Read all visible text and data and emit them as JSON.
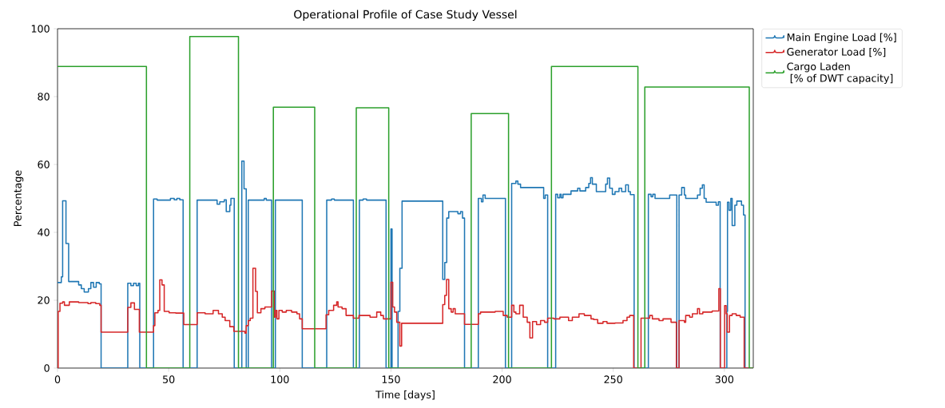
{
  "chart_data": {
    "type": "step",
    "title": "Operational Profile of Case Study Vessel",
    "xlabel": "Time [days]",
    "ylabel": "Percentage",
    "xlim": [
      0,
      313
    ],
    "ylim": [
      0,
      100
    ],
    "xticks": [
      0,
      50,
      100,
      150,
      200,
      250,
      300
    ],
    "yticks": [
      0,
      20,
      40,
      60,
      80,
      100
    ],
    "legend": "top right",
    "series": [
      {
        "name": "Main Engine Load [%]",
        "color": "#1f77b4",
        "x": [
          0,
          1.7,
          2.3,
          3.8,
          5.0,
          9.5,
          10.7,
          12.0,
          13.9,
          15.0,
          16.2,
          17.4,
          18.8,
          19.6,
          31.6,
          33.0,
          34.2,
          35.4,
          36.4,
          37.0,
          43.2,
          44.8,
          50.8,
          52.5,
          53.7,
          55.0,
          56.5,
          62.8,
          71.8,
          73.0,
          75.0,
          75.9,
          77.5,
          78.0,
          79.5,
          82.9,
          83.9,
          84.9,
          85.8,
          93.0,
          93.9,
          96.3,
          98.0,
          110.1,
          121.1,
          123.3,
          124.5,
          133.1,
          135.8,
          137.5,
          139.0,
          147.8,
          150.0,
          150.5,
          153.2,
          154.0,
          155.0,
          173.3,
          174.2,
          175.1,
          176.0,
          180.1,
          181.3,
          182.2,
          183.1,
          189.3,
          190.7,
          191.4,
          192.4,
          201.5,
          204.3,
          206.2,
          207.1,
          208.3,
          218.7,
          219.4,
          220.5,
          224.1,
          225.0,
          226.0,
          226.6,
          227.4,
          231.0,
          234.0,
          235.0,
          237.6,
          239.0,
          239.8,
          240.6,
          242.4,
          246.6,
          247.4,
          248.4,
          249.6,
          250.8,
          252.6,
          253.8,
          255.6,
          256.8,
          257.7,
          259.4,
          265.8,
          267.0,
          267.8,
          268.8,
          275.4,
          278.6,
          279.6,
          280.8,
          282.0,
          282.6,
          287.9,
          289.1,
          290.1,
          290.9,
          291.8,
          296.3,
          297.3,
          298.1,
          301.1,
          301.4,
          302.1,
          302.9,
          303.5,
          304.7,
          305.6,
          307.7,
          308.6,
          309.3,
          313
        ],
        "values": [
          25.2,
          26.9,
          49.3,
          36.7,
          25.5,
          24.5,
          23.4,
          22.4,
          23.4,
          25.2,
          23.8,
          25.2,
          24.8,
          0,
          25.0,
          24.3,
          25.0,
          24.3,
          25.0,
          0,
          49.8,
          49.5,
          50.0,
          49.6,
          50.0,
          49.6,
          0,
          49.5,
          48.3,
          49.0,
          49.6,
          46.1,
          48.0,
          50.0,
          0,
          61.0,
          52.8,
          0,
          49.5,
          50.0,
          49.5,
          0,
          49.5,
          0,
          49.5,
          49.8,
          49.5,
          0,
          49.5,
          49.8,
          49.5,
          0,
          41.0,
          0,
          16.7,
          29.4,
          49.2,
          26.1,
          31.1,
          44.2,
          46.1,
          45.5,
          46.1,
          44.2,
          0,
          50.0,
          49.0,
          51.0,
          50.0,
          0,
          54.4,
          55.1,
          54.2,
          53.2,
          50.0,
          51.0,
          0,
          51.2,
          50.2,
          51.2,
          50.2,
          51.2,
          52.2,
          53.0,
          52.2,
          53.2,
          54.4,
          56.1,
          54.2,
          52.0,
          54.2,
          56.0,
          53.0,
          51.2,
          52.0,
          53.0,
          52.0,
          54.0,
          52.0,
          51.1,
          0,
          51.2,
          50.5,
          51.2,
          50.0,
          51.0,
          0,
          51.0,
          53.2,
          51.0,
          50.0,
          51.0,
          53.0,
          54.0,
          50.0,
          48.9,
          48.0,
          49.0,
          0,
          16.7,
          48.9,
          46.5,
          50.0,
          42.0,
          48.0,
          49.2,
          48.0,
          45.1,
          0,
          0
        ]
      },
      {
        "name": "Generator Load [%]",
        "color": "#d62728",
        "x": [
          0,
          0.3,
          1.1,
          2.3,
          3.1,
          5.3,
          9.5,
          13.7,
          15.0,
          17.2,
          19.0,
          19.6,
          31.6,
          33.0,
          34.6,
          36.8,
          43.2,
          43.8,
          45.2,
          46.0,
          47.0,
          48.0,
          50.2,
          53.2,
          56.8,
          62.8,
          66.4,
          70.0,
          72.4,
          74.1,
          75.4,
          77.5,
          79.3,
          84.3,
          84.9,
          85.8,
          86.7,
          87.9,
          89.1,
          89.9,
          91.5,
          93.3,
          96.3,
          97.5,
          98.1,
          98.7,
          99.6,
          101.1,
          102.9,
          105.3,
          107.7,
          108.9,
          110.1,
          120.8,
          122.0,
          124.2,
          125.6,
          126.2,
          128.0,
          129.8,
          133.1,
          135.6,
          140.6,
          143.6,
          145.4,
          146.6,
          150.0,
          150.8,
          151.6,
          152.6,
          154.0,
          154.8,
          173.3,
          174.2,
          175.0,
          176.0,
          177.1,
          178.0,
          178.9,
          183.1,
          189.3,
          190.3,
          196.9,
          200.5,
          202.3,
          204.3,
          205.3,
          206.2,
          207.9,
          209.5,
          211.3,
          212.5,
          213.7,
          215.5,
          217.3,
          219.1,
          220.5,
          223.3,
          226.0,
          229.9,
          231.6,
          234.6,
          237.0,
          240.0,
          241.2,
          243.0,
          245.4,
          247.2,
          250.8,
          254.4,
          256.2,
          257.4,
          259.2,
          262.5,
          266.4,
          267.6,
          270.6,
          272.4,
          276.0,
          278.4,
          279.6,
          282.0,
          282.6,
          284.4,
          285.6,
          287.9,
          288.8,
          290.3,
          294.5,
          297.5,
          298.2,
          300.1,
          300.8,
          301.3,
          302.3,
          303.5,
          305.3,
          307.1,
          308.9,
          313
        ],
        "values": [
          0,
          16.7,
          19.1,
          19.5,
          18.5,
          19.5,
          19.3,
          19.0,
          19.3,
          19.0,
          18.5,
          10.6,
          17.9,
          19.2,
          17.3,
          10.6,
          12.5,
          16.3,
          17.0,
          26.0,
          24.5,
          16.7,
          16.3,
          16.2,
          12.8,
          16.3,
          16.0,
          17.0,
          16.0,
          15.0,
          14.0,
          12.2,
          10.8,
          10.3,
          12.5,
          14.0,
          14.7,
          29.4,
          22.6,
          16.3,
          17.5,
          18.0,
          22.7,
          15.0,
          17.0,
          14.5,
          17.0,
          16.5,
          17.0,
          16.5,
          16.0,
          14.5,
          11.6,
          15.7,
          17.0,
          18.5,
          19.5,
          18.0,
          17.5,
          15.5,
          14.7,
          15.5,
          15.0,
          16.5,
          15.5,
          14.5,
          25.3,
          18.0,
          16.5,
          13.5,
          6.5,
          13.2,
          18.7,
          21.4,
          26.1,
          17.5,
          16.5,
          17.5,
          16.0,
          12.9,
          16.0,
          16.5,
          16.7,
          15.5,
          15.0,
          18.5,
          16.5,
          16.0,
          18.5,
          15.0,
          13.5,
          8.9,
          13.7,
          12.8,
          14.0,
          13.5,
          14.7,
          14.5,
          15.0,
          14.0,
          15.0,
          16.0,
          15.5,
          14.5,
          14.3,
          13.2,
          13.7,
          13.2,
          13.3,
          14.0,
          15.0,
          15.5,
          0,
          14.7,
          15.5,
          14.5,
          14.0,
          14.5,
          13.5,
          0,
          14.0,
          13.5,
          15.5,
          15.0,
          16.0,
          17.5,
          16.0,
          16.5,
          16.8,
          23.4,
          0,
          18.4,
          16.0,
          10.6,
          15.5,
          16.0,
          15.5,
          15.0,
          0,
          0
        ]
      },
      {
        "name": "Cargo Laden\n [% of DWT capacity]",
        "color": "#2ca02c",
        "x": [
          0,
          40.0,
          59.5,
          81.4,
          97.1,
          115.7,
          134.4,
          149.0,
          186.1,
          202.9,
          222.2,
          261.1,
          264.2,
          311.2,
          313
        ],
        "values": [
          88.9,
          0,
          97.7,
          0,
          76.9,
          0,
          76.7,
          0,
          75.0,
          0,
          88.9,
          0,
          82.8,
          0,
          0
        ]
      }
    ]
  }
}
